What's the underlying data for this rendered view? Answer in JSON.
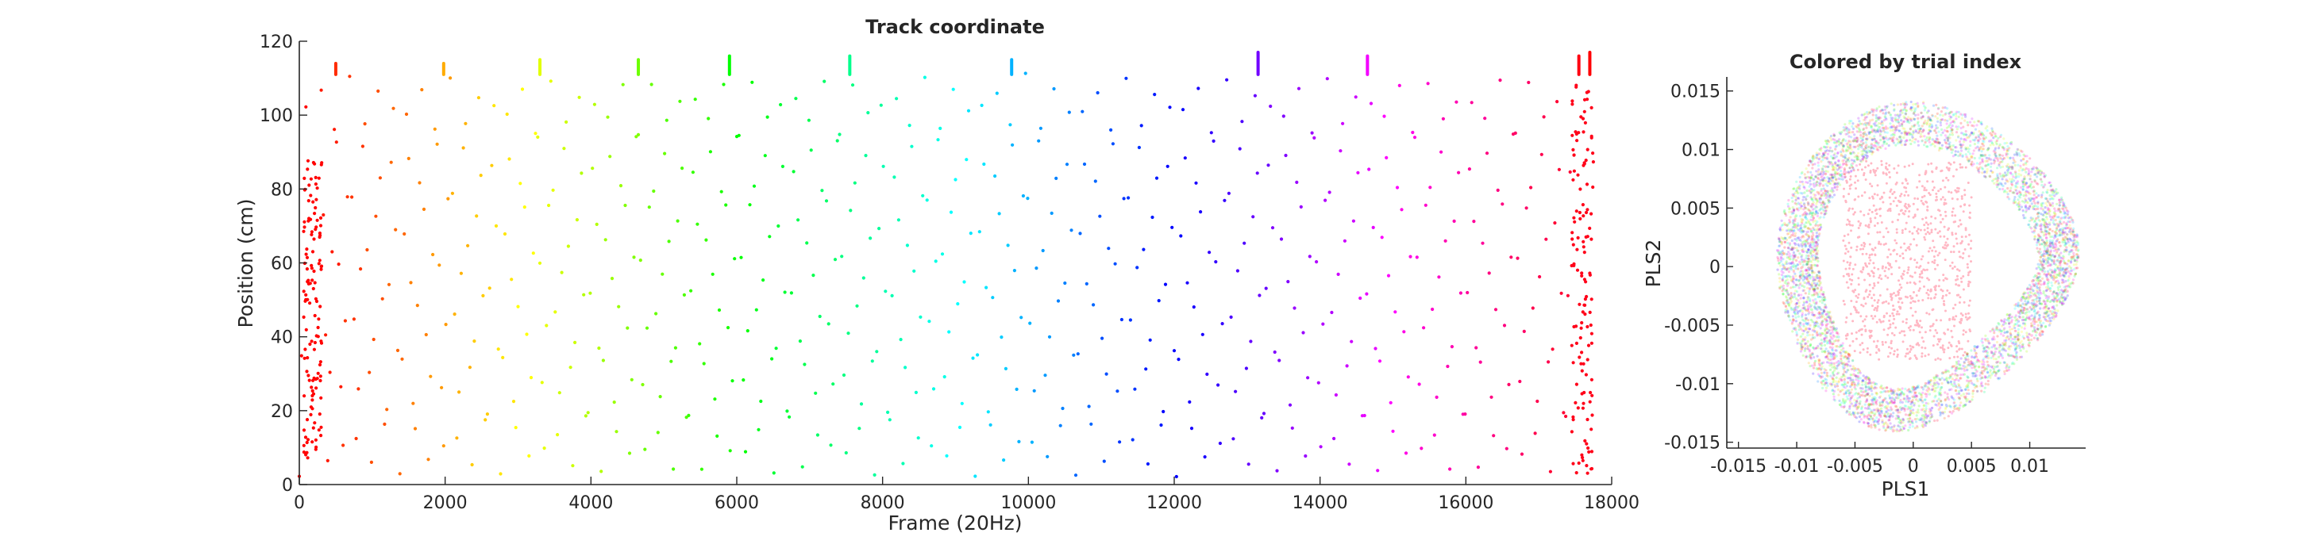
{
  "chart_data": [
    {
      "type": "scatter",
      "title": "Track coordinate",
      "xlabel": "Frame (20Hz)",
      "ylabel": "Position (cm)",
      "xlim": [
        0,
        18000
      ],
      "ylim": [
        0,
        120
      ],
      "xticks": [
        0,
        2000,
        4000,
        6000,
        8000,
        10000,
        12000,
        14000,
        16000,
        18000
      ],
      "xtick_labels": [
        "0",
        "2000",
        "4000",
        "6000",
        "8000",
        "10000",
        "12000",
        "14000",
        "16000",
        "18000"
      ],
      "yticks": [
        0,
        20,
        40,
        60,
        80,
        100,
        120
      ],
      "ytick_labels": [
        "0",
        "20",
        "40",
        "60",
        "80",
        "100",
        "120"
      ],
      "grid": false,
      "color_scheme": "hsv colormap by trial index (red → yellow → green → cyan → blue → magenta → red)",
      "series": [
        {
          "description": "Animal position along linear track, repeated laps between ~2 and ~111 cm",
          "frame_start": 0,
          "frame_end": 17750,
          "position_min": 2,
          "position_max": 111,
          "approx_lap_count": 90,
          "occasional_peaks": [
            {
              "frame": 500,
              "position": 114
            },
            {
              "frame": 1980,
              "position": 114
            },
            {
              "frame": 3300,
              "position": 115
            },
            {
              "frame": 4650,
              "position": 115
            },
            {
              "frame": 5900,
              "position": 116
            },
            {
              "frame": 7550,
              "position": 116
            },
            {
              "frame": 9770,
              "position": 115
            },
            {
              "frame": 13150,
              "position": 117
            },
            {
              "frame": 14650,
              "position": 116
            },
            {
              "frame": 17550,
              "position": 116
            },
            {
              "frame": 17700,
              "position": 117
            }
          ]
        }
      ]
    },
    {
      "type": "scatter",
      "title": "Colored by trial index",
      "xlabel": "PLS1",
      "ylabel": "PLS2",
      "xlim": [
        -0.016,
        0.0148
      ],
      "ylim": [
        -0.0155,
        0.0162
      ],
      "xticks": [
        -0.015,
        -0.01,
        -0.005,
        0,
        0.005,
        0.01
      ],
      "xtick_labels": [
        "-0.015",
        "-0.01",
        "-0.005",
        "0",
        "0.005",
        "0.01"
      ],
      "yticks": [
        -0.015,
        -0.01,
        -0.005,
        0,
        0.005,
        0.01,
        0.015
      ],
      "ytick_labels": [
        "-0.015",
        "-0.01",
        "-0.005",
        "0",
        "0.005",
        "0.01",
        "0.015"
      ],
      "grid": false,
      "color_scheme": "hsv colormap by trial index, semi-transparent points",
      "series": [
        {
          "description": "Latent trajectories forming a ring-shaped manifold with tangled red trials in the center",
          "ring_center": [
            0.0,
            0.0
          ],
          "x_extent": [
            -0.0155,
            0.0145
          ],
          "y_extent": [
            -0.0148,
            0.0155
          ]
        }
      ]
    }
  ]
}
